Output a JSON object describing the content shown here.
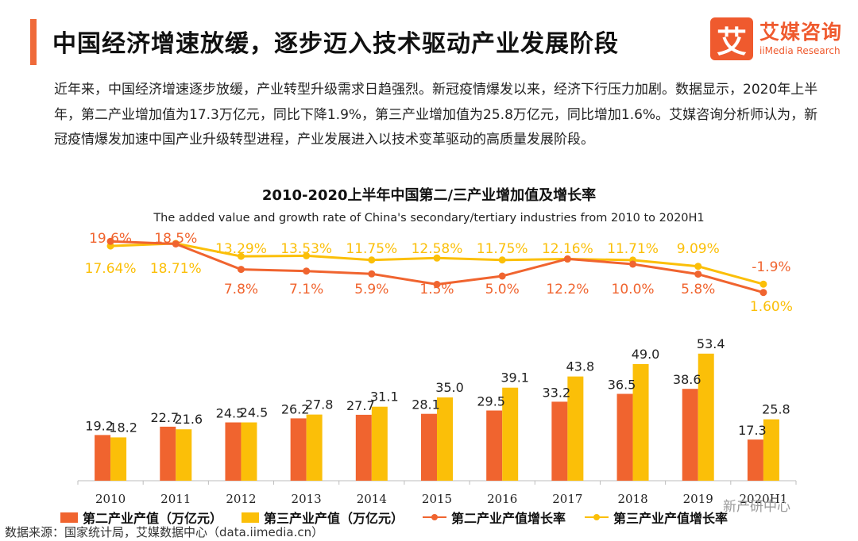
{
  "header": {
    "title": "中国经济增速放缓，逐步迈入技术驱动产业发展阶段",
    "logo_mark": "艾",
    "logo_cn": "艾媒咨询",
    "logo_en": "iiMedia Research"
  },
  "intro_text": "近年来，中国经济增速逐步放缓，产业转型升级需求日趋强烈。新冠疫情爆发以来，经济下行压力加剧。数据显示，2020年上半年，第二产业增加值为17.3万亿元，同比下降1.9%，第三产业增加值为25.8万亿元，同比增加1.6%。艾媒咨询分析师认为，新冠疫情爆发加速中国产业升级转型进程，产业发展进入以技术变革驱动的高质量发展阶段。",
  "colors": {
    "secondary": "#f0642f",
    "tertiary": "#fbbf08",
    "accent": "#ef6a3a"
  },
  "chart_data": {
    "type": "bar",
    "title": "2010-2020上半年中国第二/三产业增加值及增长率",
    "subtitle": "The added value and growth rate of China's secondary/tertiary industries from 2010 to 2020H1",
    "categories": [
      "2010",
      "2011",
      "2012",
      "2013",
      "2014",
      "2015",
      "2016",
      "2017",
      "2018",
      "2019",
      "2020H1"
    ],
    "category_labels": [
      "2010",
      "2011",
      "2012",
      "2013",
      "2014",
      "2015",
      "2016",
      "2017",
      "2018",
      "2019",
      "2020H1"
    ],
    "bar_series": [
      {
        "name": "第二产业产值（万亿元）",
        "values": [
          19.2,
          22.7,
          24.5,
          26.2,
          27.7,
          28.1,
          29.5,
          33.2,
          36.5,
          38.6,
          17.3
        ]
      },
      {
        "name": "第三产业产值（万亿元）",
        "values": [
          18.2,
          21.6,
          24.5,
          27.8,
          31.1,
          35.0,
          39.1,
          43.8,
          49.0,
          53.4,
          25.8
        ]
      }
    ],
    "line_series": [
      {
        "name": "第二产业产值增长率",
        "unit": "%",
        "values": [
          19.6,
          18.5,
          7.8,
          7.1,
          5.9,
          1.5,
          5.0,
          12.2,
          10.0,
          5.8,
          -1.9
        ]
      },
      {
        "name": "第三产业产值增长率",
        "unit": "%",
        "values": [
          17.64,
          18.71,
          13.29,
          13.53,
          11.75,
          12.58,
          11.75,
          12.16,
          11.71,
          9.09,
          1.6
        ]
      }
    ],
    "line_labels": [
      [
        "19.6%",
        "18.5%",
        "7.8%",
        "7.1%",
        "5.9%",
        "1.5%",
        "5.0%",
        "12.2%",
        "10.0%",
        "5.8%",
        "-1.9%"
      ],
      [
        "17.64%",
        "18.71%",
        "13.29%",
        "13.53%",
        "11.75%",
        "12.58%",
        "11.75%",
        "12.16%",
        "11.71%",
        "9.09%",
        "1.60%"
      ]
    ],
    "bar_ylim": [
      0,
      60
    ],
    "line_ylim": [
      -3,
      21
    ],
    "legend_position": "bottom"
  },
  "footer": {
    "source": "数据来源：国家统计局，艾媒数据中心（data.iimedia.cn）",
    "watermark": "新产研中心"
  }
}
